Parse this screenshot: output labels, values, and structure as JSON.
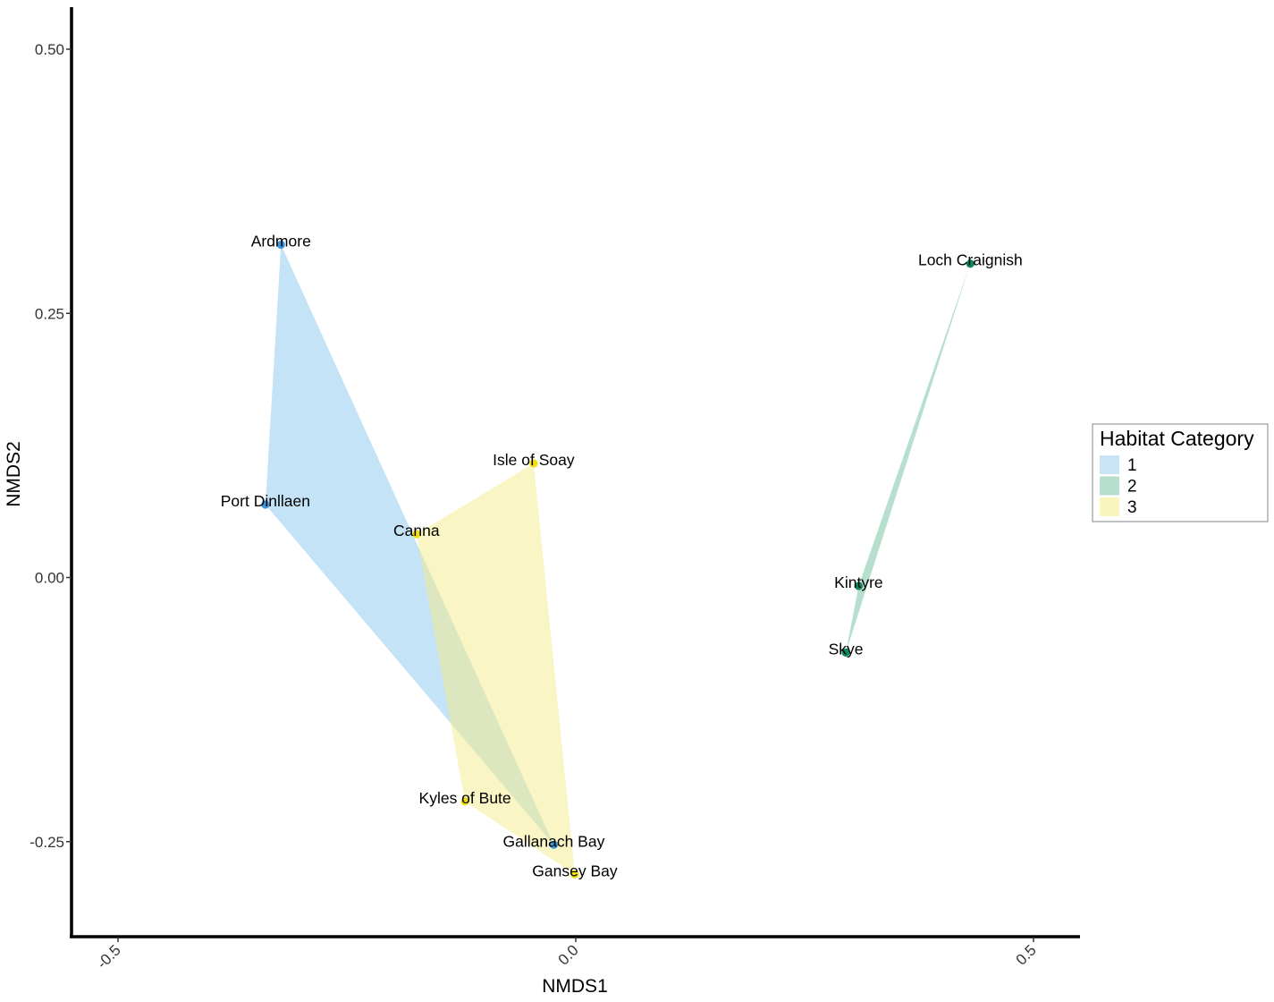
{
  "chart_data": {
    "type": "scatter",
    "xlabel": "NMDS1",
    "ylabel": "NMDS2",
    "xlim": [
      -0.55,
      0.55
    ],
    "ylim": [
      -0.34,
      0.54
    ],
    "x_ticks": [
      {
        "value": -0.5,
        "label": "-0.5"
      },
      {
        "value": 0.0,
        "label": "0.0"
      },
      {
        "value": 0.5,
        "label": "0.5"
      }
    ],
    "y_ticks": [
      {
        "value": 0.5,
        "label": "0.50"
      },
      {
        "value": 0.25,
        "label": "0.25"
      },
      {
        "value": 0.0,
        "label": "0.00"
      },
      {
        "value": -0.25,
        "label": "-0.25"
      }
    ],
    "grid": false,
    "legend": {
      "title": "Habitat Category",
      "position": "right",
      "entries": [
        {
          "label": "1",
          "fill": "#c9e4f6"
        },
        {
          "label": "2",
          "fill": "#b7dfcd"
        },
        {
          "label": "3",
          "fill": "#f8f5be"
        }
      ]
    },
    "groups": [
      {
        "name": "1",
        "point_color": "#3d96db",
        "hull_color": "#8cc7ee",
        "hull_opacity": 0.5,
        "hull": [
          "Ardmore",
          "Port Dinllaen",
          "Gallanach Bay"
        ]
      },
      {
        "name": "2",
        "point_color": "#0c8a5a",
        "hull_color": "#6fbf9b",
        "hull_opacity": 0.5,
        "hull": [
          "Loch Craignish",
          "Kintyre",
          "Skye"
        ]
      },
      {
        "name": "3",
        "point_color": "#f0dd12",
        "hull_color": "#f3ec8a",
        "hull_opacity": 0.5,
        "hull": [
          "Isle of Soay",
          "Canna",
          "Kyles of Bute",
          "Gansey Bay"
        ]
      }
    ],
    "points": [
      {
        "label": "Ardmore",
        "x": -0.322,
        "y": 0.315,
        "group": "1"
      },
      {
        "label": "Port Dinllaen",
        "x": -0.339,
        "y": 0.069,
        "group": "1"
      },
      {
        "label": "Gallanach Bay",
        "x": -0.024,
        "y": -0.253,
        "group": "1"
      },
      {
        "label": "Loch Craignish",
        "x": 0.431,
        "y": 0.297,
        "group": "2"
      },
      {
        "label": "Kintyre",
        "x": 0.309,
        "y": -0.008,
        "group": "2"
      },
      {
        "label": "Skye",
        "x": 0.295,
        "y": -0.071,
        "group": "2"
      },
      {
        "label": "Isle of Soay",
        "x": -0.046,
        "y": 0.108,
        "group": "3"
      },
      {
        "label": "Canna",
        "x": -0.174,
        "y": 0.041,
        "group": "3"
      },
      {
        "label": "Kyles of Bute",
        "x": -0.121,
        "y": -0.212,
        "group": "3"
      },
      {
        "label": "Gansey Bay",
        "x": -0.001,
        "y": -0.281,
        "group": "3"
      }
    ]
  }
}
